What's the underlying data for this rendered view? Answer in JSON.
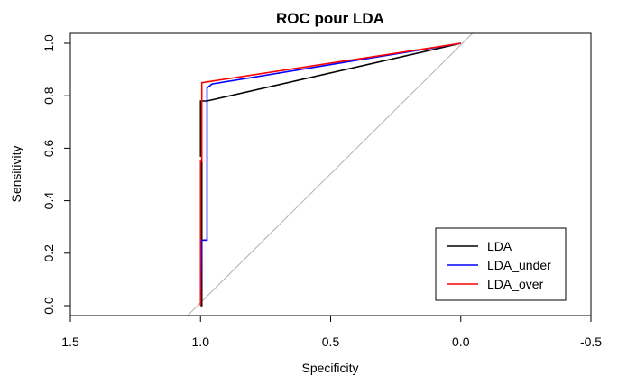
{
  "chart_data": {
    "type": "line",
    "title": "ROC pour LDA",
    "xlabel": "Specificity",
    "ylabel": "Sensitivity",
    "xlim": [
      1.5,
      -0.5
    ],
    "ylim": [
      0,
      1
    ],
    "x_reversed": true,
    "x_ticks": [
      1.5,
      1.0,
      0.5,
      0.0,
      -0.5
    ],
    "x_tick_labels": [
      "1.5",
      "1.0",
      "0.5",
      "0.0",
      "-0.5"
    ],
    "y_ticks": [
      0.0,
      0.2,
      0.4,
      0.6,
      0.8,
      1.0
    ],
    "y_tick_labels": [
      "0.0",
      "0.2",
      "0.4",
      "0.6",
      "0.8",
      "1.0"
    ],
    "grid": false,
    "diagonal_reference": true,
    "legend_position": "bottom-right",
    "series": [
      {
        "name": "LDA",
        "color": "#000000",
        "x": [
          1.0,
          0.995,
          0.995,
          1.0,
          1.0,
          0.975,
          0.0
        ],
        "y": [
          0.0,
          0.0,
          0.57,
          0.57,
          0.78,
          0.78,
          1.0
        ]
      },
      {
        "name": "LDA_under",
        "color": "#0000ff",
        "x": [
          1.0,
          0.995,
          0.975,
          0.975,
          0.955,
          0.0
        ],
        "y": [
          0.0,
          0.25,
          0.25,
          0.83,
          0.845,
          1.0
        ]
      },
      {
        "name": "LDA_over",
        "color": "#ff0000",
        "x": [
          1.0,
          1.0,
          0.995,
          0.995,
          0.0
        ],
        "y": [
          0.0,
          0.55,
          0.55,
          0.85,
          1.0
        ]
      }
    ]
  }
}
